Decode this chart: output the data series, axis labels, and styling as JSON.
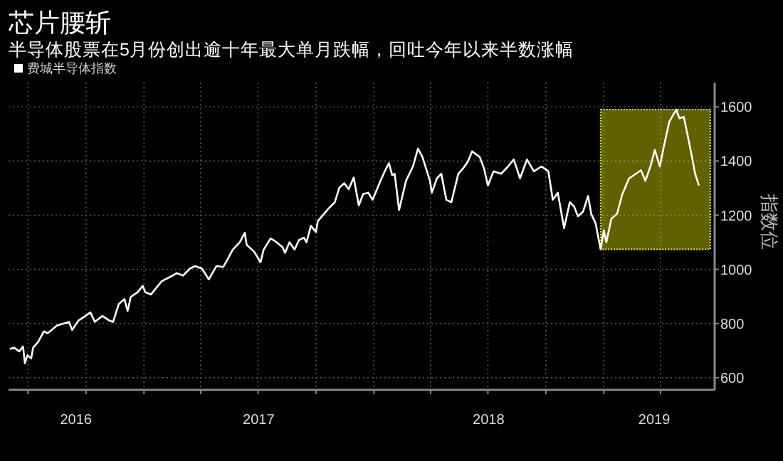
{
  "chart_data": {
    "type": "line",
    "title": "芯片腰斩",
    "subtitle": "半导体股票在5月份创出逾十年最大单月跌幅，回吐今年以来半数涨幅",
    "ylabel": "指数位",
    "legend": "top left",
    "grid": true,
    "series": [
      {
        "name": "费城半导体指数",
        "color": "#ffffff",
        "x": [
          "2016-06-02",
          "2016-06-09",
          "2016-06-17",
          "2016-06-23",
          "2016-06-26",
          "2016-06-30",
          "2016-07-06",
          "2016-07-09",
          "2016-07-17",
          "2016-07-26",
          "2016-08-01",
          "2016-08-16",
          "2016-09-04",
          "2016-09-09",
          "2016-09-19",
          "2016-09-30",
          "2016-10-08",
          "2016-10-15",
          "2016-10-27",
          "2016-11-07",
          "2016-11-13",
          "2016-11-22",
          "2016-12-01",
          "2016-12-06",
          "2016-12-11",
          "2016-12-22",
          "2016-12-30",
          "2017-01-03",
          "2017-01-12",
          "2017-01-21",
          "2017-01-29",
          "2017-02-13",
          "2017-02-22",
          "2017-03-04",
          "2017-03-15",
          "2017-03-23",
          "2017-04-03",
          "2017-04-14",
          "2017-04-26",
          "2017-05-07",
          "2017-05-14",
          "2017-05-22",
          "2017-06-02",
          "2017-06-10",
          "2017-06-13",
          "2017-06-25",
          "2017-07-05",
          "2017-07-10",
          "2017-07-21",
          "2017-07-29",
          "2017-08-09",
          "2017-08-13",
          "2017-08-20",
          "2017-08-28",
          "2017-09-04",
          "2017-09-12",
          "2017-09-16",
          "2017-09-23",
          "2017-10-01",
          "2017-10-04",
          "2017-10-20",
          "2017-10-31",
          "2017-11-07",
          "2017-11-15",
          "2017-11-22",
          "2017-11-30",
          "2017-12-08",
          "2017-12-15",
          "2017-12-23",
          "2017-12-30",
          "2018-01-11",
          "2018-01-19",
          "2018-01-25",
          "2018-01-30",
          "2018-02-03",
          "2018-02-10",
          "2018-02-21",
          "2018-03-04",
          "2018-03-12",
          "2018-03-19",
          "2018-03-31",
          "2018-04-03",
          "2018-04-11",
          "2018-04-18",
          "2018-04-26",
          "2018-05-04",
          "2018-05-15",
          "2018-05-22",
          "2018-05-30",
          "2018-06-06",
          "2018-06-18",
          "2018-06-25",
          "2018-07-01",
          "2018-07-10",
          "2018-07-22",
          "2018-08-02",
          "2018-08-11",
          "2018-08-21",
          "2018-09-01",
          "2018-09-12",
          "2018-09-24",
          "2018-10-05",
          "2018-10-12",
          "2018-10-20",
          "2018-10-30",
          "2018-11-08",
          "2018-11-15",
          "2018-11-21",
          "2018-11-29",
          "2018-12-07",
          "2018-12-12",
          "2018-12-19",
          "2018-12-27",
          "2019-01-01",
          "2019-01-05",
          "2019-01-13",
          "2019-01-22",
          "2019-01-30",
          "2019-02-10",
          "2019-02-21",
          "2019-03-01",
          "2019-03-08",
          "2019-03-16",
          "2019-03-23",
          "2019-03-31",
          "2019-04-06",
          "2019-04-15",
          "2019-04-26",
          "2019-05-01",
          "2019-05-08",
          "2019-05-15",
          "2019-05-21",
          "2019-05-26",
          "2019-06-01"
        ],
        "values": [
          706,
          711,
          697,
          715,
          653,
          683,
          671,
          711,
          732,
          771,
          764,
          793,
          806,
          776,
          811,
          828,
          841,
          806,
          828,
          811,
          806,
          872,
          890,
          846,
          898,
          916,
          939,
          916,
          907,
          933,
          956,
          974,
          986,
          977,
          1003,
          1012,
          1003,
          963,
          1012,
          1009,
          1038,
          1073,
          1100,
          1135,
          1091,
          1065,
          1026,
          1073,
          1114,
          1103,
          1082,
          1061,
          1100,
          1073,
          1108,
          1117,
          1100,
          1161,
          1138,
          1178,
          1222,
          1248,
          1301,
          1318,
          1296,
          1339,
          1236,
          1278,
          1283,
          1257,
          1324,
          1366,
          1392,
          1348,
          1353,
          1219,
          1327,
          1380,
          1446,
          1415,
          1327,
          1283,
          1336,
          1353,
          1257,
          1248,
          1353,
          1371,
          1397,
          1436,
          1415,
          1371,
          1310,
          1362,
          1353,
          1380,
          1406,
          1336,
          1406,
          1362,
          1380,
          1362,
          1257,
          1283,
          1152,
          1248,
          1231,
          1196,
          1213,
          1271,
          1205,
          1170,
          1074,
          1144,
          1100,
          1187,
          1205,
          1275,
          1336,
          1353,
          1366,
          1327,
          1380,
          1441,
          1380,
          1450,
          1546,
          1590,
          1558,
          1563,
          1485,
          1415,
          1353,
          1310
        ]
      }
    ],
    "xlim": [
      "2016-05-31",
      "2019-06-26"
    ],
    "xticks": [
      {
        "value": "2016-07-01",
        "label": null
      },
      {
        "value": "2016-10-01",
        "label": null
      },
      {
        "value": "2017-01-01",
        "label": null
      },
      {
        "value": "2017-04-01",
        "label": null
      },
      {
        "value": "2017-07-01",
        "label": null
      },
      {
        "value": "2017-10-01",
        "label": null
      },
      {
        "value": "2018-01-01",
        "label": null
      },
      {
        "value": "2018-04-01",
        "label": null
      },
      {
        "value": "2018-07-01",
        "label": null
      },
      {
        "value": "2018-10-01",
        "label": null
      },
      {
        "value": "2019-01-01",
        "label": null
      },
      {
        "value": "2019-04-01",
        "label": null
      },
      {
        "value": "2016-09-15",
        "label": "2016"
      },
      {
        "value": "2017-07-02",
        "label": "2017"
      },
      {
        "value": "2018-07-02",
        "label": "2018"
      },
      {
        "value": "2019-03-22",
        "label": "2019"
      }
    ],
    "ylim": [
      555,
      1690
    ],
    "yticks": [
      600,
      800,
      1000,
      1200,
      1400,
      1600
    ],
    "bands": [
      {
        "axis": "x",
        "from": "2018-12-27",
        "to": "2019-06-19",
        "color": "#ffff00"
      }
    ]
  }
}
